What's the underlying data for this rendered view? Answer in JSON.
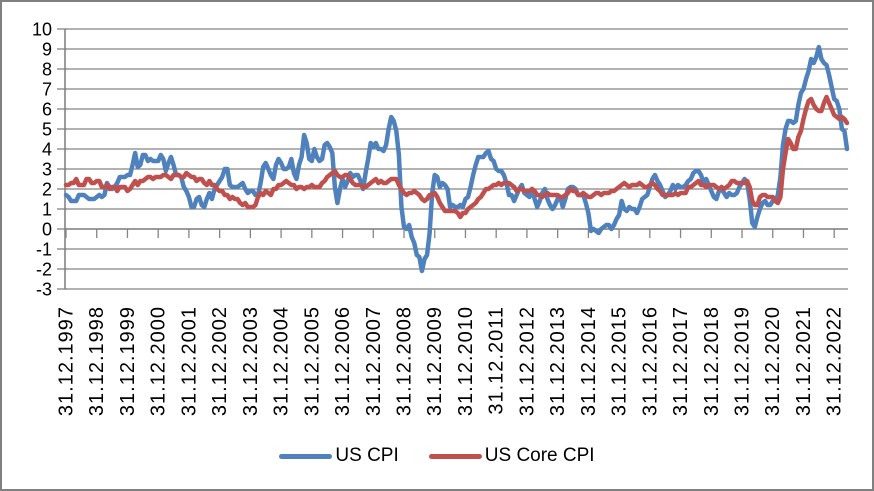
{
  "window": {
    "background": "#ffffff",
    "border_color": "#808080"
  },
  "chart_data": {
    "type": "line",
    "title": "",
    "xlabel": "",
    "ylabel": "",
    "ylim": [
      -3,
      10
    ],
    "y_ticks": [
      10,
      9,
      8,
      7,
      6,
      5,
      4,
      3,
      2,
      1,
      0,
      -1,
      -2,
      -3
    ],
    "grid": "horizontal",
    "grid_color": "#848484",
    "axis_color": "#848484",
    "tick_label_color": "#000000",
    "legend_position": "bottom-center",
    "frequency": "monthly",
    "x_year_tick_interval": 12,
    "x_tick_labels": [
      "31.12.1997",
      "31.12.1998",
      "31.12.1999",
      "31.12.2000",
      "31.12.2001",
      "31.12.2002",
      "31.12.2003",
      "31.12.2004",
      "31.12.2005",
      "31.12.2006",
      "31.12.2007",
      "31.12.2008",
      "31.12.2009",
      "31.12.2010",
      "31.12.2011",
      "31.12.2012",
      "31.12.2013",
      "31.12.2014",
      "31.12.2015",
      "31.12.2016",
      "31.12.2017",
      "31.12.2018",
      "31.12.2019",
      "31.12.2020",
      "31.12.2021",
      "31.12.2022"
    ],
    "series": [
      {
        "name": "US CPI",
        "color": "#4F81BD",
        "values": [
          1.7,
          1.6,
          1.4,
          1.4,
          1.4,
          1.7,
          1.7,
          1.7,
          1.6,
          1.5,
          1.5,
          1.5,
          1.6,
          1.7,
          1.6,
          1.7,
          2.3,
          2.1,
          2.0,
          2.1,
          2.3,
          2.6,
          2.6,
          2.6,
          2.7,
          2.7,
          3.2,
          3.8,
          3.1,
          3.2,
          3.7,
          3.7,
          3.4,
          3.5,
          3.4,
          3.4,
          3.4,
          3.7,
          3.5,
          2.9,
          3.3,
          3.6,
          3.2,
          2.7,
          2.7,
          2.6,
          2.1,
          1.9,
          1.6,
          1.1,
          1.1,
          1.5,
          1.6,
          1.2,
          1.1,
          1.5,
          1.8,
          1.5,
          2.0,
          2.2,
          2.4,
          2.6,
          3.0,
          3.0,
          2.2,
          2.1,
          2.1,
          2.1,
          2.2,
          2.3,
          2.0,
          1.8,
          1.9,
          1.9,
          1.7,
          1.7,
          2.3,
          3.1,
          3.3,
          3.0,
          2.7,
          2.5,
          3.2,
          3.5,
          3.3,
          3.0,
          3.0,
          3.1,
          3.5,
          2.8,
          2.5,
          3.2,
          3.6,
          4.7,
          4.3,
          3.5,
          3.4,
          4.0,
          3.6,
          3.4,
          3.5,
          4.2,
          4.3,
          4.1,
          3.8,
          2.1,
          1.3,
          2.0,
          2.5,
          2.1,
          2.4,
          2.8,
          2.6,
          2.7,
          2.7,
          2.4,
          2.0,
          2.8,
          3.5,
          4.3,
          4.1,
          4.3,
          4.0,
          4.0,
          3.9,
          4.2,
          5.0,
          5.6,
          5.4,
          4.9,
          3.7,
          1.1,
          0.1,
          0.0,
          0.2,
          -0.4,
          -0.7,
          -1.3,
          -1.4,
          -2.1,
          -1.5,
          -1.3,
          -0.2,
          1.8,
          2.7,
          2.6,
          2.1,
          2.3,
          2.2,
          2.0,
          1.1,
          1.2,
          1.1,
          1.1,
          1.2,
          1.1,
          1.5,
          1.6,
          2.1,
          2.7,
          3.2,
          3.6,
          3.6,
          3.6,
          3.8,
          3.9,
          3.5,
          3.4,
          3.0,
          2.9,
          2.9,
          2.7,
          2.3,
          1.7,
          1.7,
          1.4,
          1.7,
          2.0,
          2.2,
          1.8,
          1.7,
          1.6,
          2.0,
          1.5,
          1.1,
          1.4,
          1.8,
          2.0,
          1.5,
          1.2,
          1.0,
          1.2,
          1.5,
          1.6,
          1.1,
          1.5,
          2.0,
          2.1,
          2.1,
          2.0,
          1.7,
          1.7,
          1.7,
          1.3,
          0.8,
          -0.1,
          0.0,
          -0.1,
          -0.2,
          0.0,
          0.1,
          0.2,
          0.2,
          0.0,
          0.2,
          0.5,
          0.7,
          1.4,
          1.0,
          0.9,
          1.1,
          1.0,
          1.0,
          0.8,
          1.1,
          1.5,
          1.6,
          1.7,
          2.1,
          2.5,
          2.7,
          2.4,
          2.2,
          1.9,
          1.6,
          1.7,
          1.9,
          2.2,
          2.0,
          2.2,
          2.1,
          2.1,
          2.2,
          2.4,
          2.5,
          2.8,
          2.9,
          2.9,
          2.7,
          2.3,
          2.5,
          2.2,
          1.9,
          1.6,
          1.5,
          1.9,
          2.0,
          1.8,
          1.6,
          1.8,
          1.7,
          1.7,
          1.8,
          2.1,
          2.3,
          2.5,
          2.3,
          1.5,
          0.3,
          0.1,
          0.6,
          1.0,
          1.3,
          1.4,
          1.2,
          1.2,
          1.4,
          1.4,
          1.7,
          2.6,
          4.2,
          5.0,
          5.4,
          5.4,
          5.3,
          5.4,
          6.2,
          6.8,
          7.0,
          7.5,
          7.9,
          8.5,
          8.3,
          8.6,
          9.1,
          8.5,
          8.3,
          8.2,
          7.7,
          7.1,
          6.5,
          6.4,
          6.0,
          5.0,
          4.9,
          4.0
        ]
      },
      {
        "name": "US Core CPI",
        "color": "#C0504D",
        "values": [
          2.2,
          2.2,
          2.3,
          2.3,
          2.5,
          2.2,
          2.2,
          2.2,
          2.5,
          2.5,
          2.3,
          2.3,
          2.4,
          2.4,
          2.1,
          2.1,
          2.2,
          2.0,
          2.1,
          2.1,
          1.9,
          2.1,
          2.1,
          2.1,
          1.9,
          2.0,
          2.2,
          2.4,
          2.2,
          2.4,
          2.4,
          2.5,
          2.6,
          2.6,
          2.5,
          2.6,
          2.6,
          2.6,
          2.7,
          2.7,
          2.6,
          2.5,
          2.7,
          2.7,
          2.7,
          2.6,
          2.6,
          2.8,
          2.7,
          2.6,
          2.6,
          2.4,
          2.5,
          2.5,
          2.3,
          2.2,
          2.4,
          2.2,
          2.2,
          2.0,
          1.9,
          1.9,
          1.7,
          1.7,
          1.5,
          1.6,
          1.5,
          1.5,
          1.3,
          1.2,
          1.3,
          1.1,
          1.1,
          1.1,
          1.2,
          1.6,
          1.8,
          1.7,
          1.9,
          1.8,
          1.7,
          2.0,
          2.0,
          2.2,
          2.2,
          2.3,
          2.4,
          2.3,
          2.2,
          2.2,
          2.0,
          2.1,
          2.1,
          2.0,
          2.1,
          2.1,
          2.2,
          2.1,
          2.1,
          2.1,
          2.3,
          2.4,
          2.6,
          2.7,
          2.8,
          2.9,
          2.7,
          2.6,
          2.6,
          2.7,
          2.7,
          2.5,
          2.3,
          2.2,
          2.2,
          2.2,
          2.1,
          2.1,
          2.2,
          2.3,
          2.4,
          2.5,
          2.3,
          2.4,
          2.3,
          2.3,
          2.4,
          2.5,
          2.5,
          2.5,
          2.2,
          2.0,
          1.8,
          1.7,
          1.8,
          1.8,
          1.9,
          1.8,
          1.7,
          1.5,
          1.4,
          1.5,
          1.7,
          1.7,
          1.8,
          1.6,
          1.3,
          1.1,
          0.9,
          0.9,
          0.9,
          0.9,
          0.9,
          0.8,
          0.6,
          0.8,
          0.8,
          1.0,
          1.1,
          1.2,
          1.3,
          1.5,
          1.6,
          1.8,
          2.0,
          2.0,
          2.1,
          2.2,
          2.2,
          2.3,
          2.2,
          2.3,
          2.3,
          2.3,
          2.2,
          2.1,
          1.9,
          2.0,
          2.0,
          1.9,
          1.9,
          1.9,
          2.0,
          1.9,
          1.7,
          1.7,
          1.6,
          1.7,
          1.8,
          1.7,
          1.7,
          1.7,
          1.7,
          1.6,
          1.6,
          1.7,
          1.8,
          2.0,
          1.9,
          1.9,
          1.7,
          1.7,
          1.8,
          1.7,
          1.6,
          1.6,
          1.7,
          1.8,
          1.8,
          1.7,
          1.8,
          1.8,
          1.8,
          1.9,
          1.9,
          2.0,
          2.1,
          2.2,
          2.3,
          2.2,
          2.1,
          2.2,
          2.2,
          2.2,
          2.3,
          2.2,
          2.1,
          2.1,
          2.2,
          2.3,
          2.2,
          2.0,
          1.9,
          1.7,
          1.7,
          1.7,
          1.7,
          1.7,
          1.8,
          1.7,
          1.8,
          1.8,
          1.8,
          2.1,
          2.1,
          2.2,
          2.3,
          2.4,
          2.2,
          2.2,
          2.1,
          2.2,
          2.2,
          2.2,
          2.1,
          2.0,
          2.1,
          2.0,
          2.1,
          2.2,
          2.4,
          2.4,
          2.3,
          2.3,
          2.3,
          2.3,
          2.4,
          2.1,
          1.4,
          1.2,
          1.2,
          1.6,
          1.7,
          1.7,
          1.6,
          1.6,
          1.6,
          1.4,
          1.3,
          1.6,
          3.0,
          3.8,
          4.5,
          4.3,
          4.0,
          4.0,
          4.6,
          4.9,
          5.5,
          6.0,
          6.4,
          6.5,
          6.2,
          6.0,
          5.9,
          5.9,
          6.3,
          6.6,
          6.3,
          6.0,
          5.7,
          5.6,
          5.5,
          5.6,
          5.5,
          5.3
        ]
      }
    ]
  },
  "legend": {
    "items": [
      {
        "label": "US CPI",
        "color": "#4F81BD"
      },
      {
        "label": "US Core CPI",
        "color": "#C0504D"
      }
    ]
  }
}
